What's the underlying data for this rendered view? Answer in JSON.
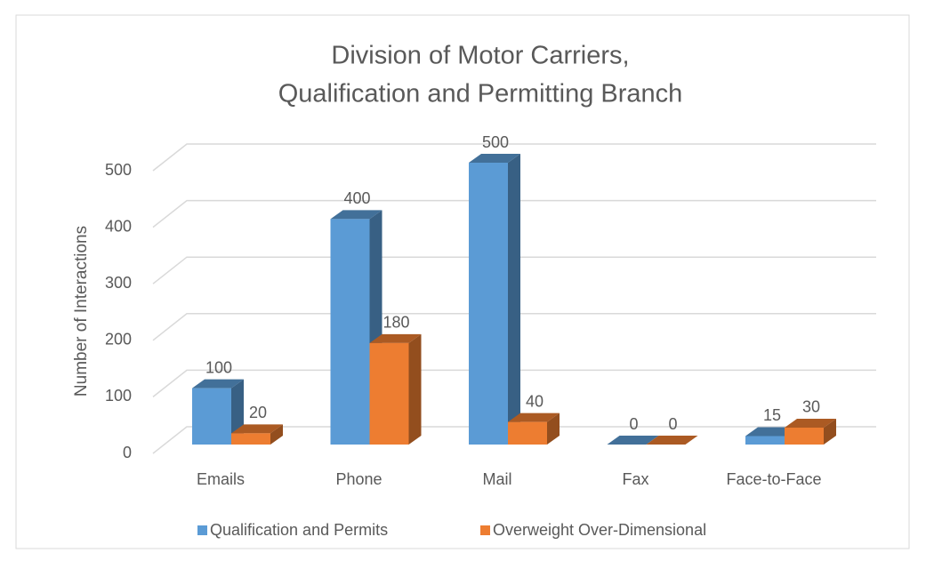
{
  "chart_data": {
    "type": "bar3d",
    "title": [
      "Division of Motor Carriers,",
      "Qualification and Permitting Branch"
    ],
    "y_label": "Number of Interactions",
    "categories": [
      "Emails",
      "Phone",
      "Mail",
      "Fax",
      "Face-to-Face"
    ],
    "series": [
      {
        "name": "Qualification and Permits",
        "color": "#5b9bd5",
        "values": [
          100,
          400,
          500,
          0,
          15
        ]
      },
      {
        "name": "Overweight Over-Dimensional",
        "color": "#ed7d31",
        "values": [
          20,
          180,
          40,
          0,
          30
        ]
      }
    ],
    "ylim": [
      0,
      500
    ],
    "yticks": [
      0,
      100,
      200,
      300,
      400,
      500
    ],
    "grid": true,
    "legend": "bottom"
  }
}
